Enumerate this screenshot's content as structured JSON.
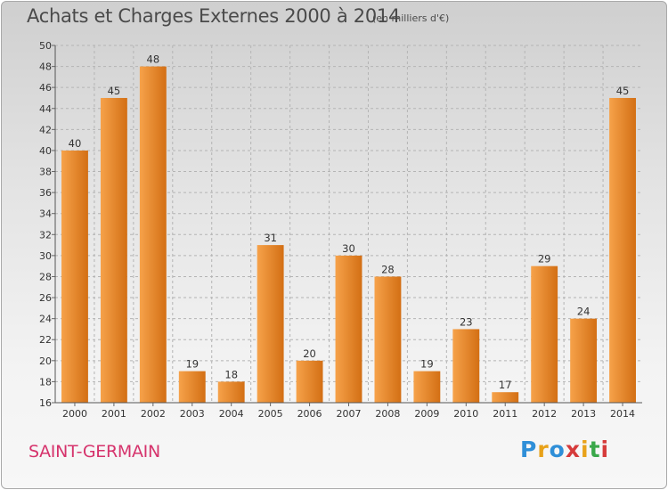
{
  "header": {
    "title": "Achats et Charges Externes 2000 à 2014",
    "unit": "(en milliers d'€)"
  },
  "footer": {
    "place": "SAINT-GERMAIN",
    "logo_text": "Proxiti",
    "logo_colors": [
      "#2f8fd8",
      "#e8a21a",
      "#2f8fd8",
      "#d63b3b",
      "#e8a21a",
      "#3aa84a",
      "#d63b3b"
    ]
  },
  "colors": {
    "bar_light": "#f6a24a",
    "bar_dark": "#d36f14",
    "grid": "#b4b4b4"
  },
  "chart_data": {
    "type": "bar",
    "title": "Achats et Charges Externes 2000 à 2014",
    "subtitle": "(en milliers d'€)",
    "categories": [
      "2000",
      "2001",
      "2002",
      "2003",
      "2004",
      "2005",
      "2006",
      "2007",
      "2008",
      "2009",
      "2010",
      "2011",
      "2012",
      "2013",
      "2014"
    ],
    "values": [
      40,
      45,
      48,
      19,
      18,
      31,
      20,
      30,
      28,
      19,
      23,
      17,
      29,
      24,
      45
    ],
    "ylim": [
      16,
      50
    ],
    "yticks": [
      16,
      18,
      20,
      22,
      24,
      26,
      28,
      30,
      32,
      34,
      36,
      38,
      40,
      42,
      44,
      46,
      48,
      50
    ],
    "grid": true,
    "data_labels": true
  }
}
